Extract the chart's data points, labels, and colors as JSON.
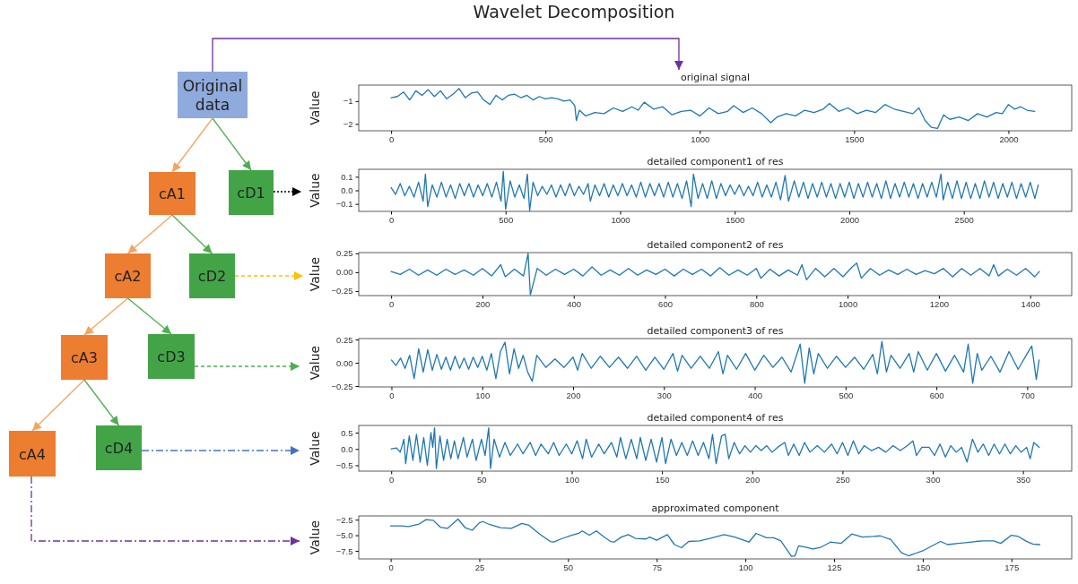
{
  "chart_data": [
    {
      "type": "other",
      "title": "Wavelet Decomposition",
      "annotations": [
        "Original data",
        "cA1",
        "cD1",
        "cA2",
        "cD2",
        "cA3",
        "cD3",
        "cA4",
        "cD4"
      ]
    },
    {
      "type": "line",
      "title": "original signal",
      "ylabel": "Value",
      "xlim": [
        -105,
        2205
      ],
      "xticks": [
        0,
        500,
        1000,
        1500,
        2000
      ],
      "ylim": [
        -2.3,
        -0.3
      ],
      "yticks": [
        {
          "value": -2,
          "label": "−2"
        },
        {
          "value": -1,
          "label": "−1"
        }
      ],
      "series": [
        {
          "color": "#1f77b4",
          "x": [
            0,
            20,
            40,
            60,
            80,
            100,
            120,
            140,
            160,
            180,
            200,
            220,
            240,
            260,
            280,
            300,
            320,
            340,
            360,
            380,
            400,
            420,
            440,
            460,
            480,
            500,
            520,
            540,
            560,
            580,
            595,
            600,
            610,
            630,
            660,
            690,
            720,
            750,
            780,
            800,
            820,
            850,
            880,
            910,
            940,
            970,
            1000,
            1030,
            1060,
            1090,
            1110,
            1140,
            1170,
            1200,
            1230,
            1250,
            1280,
            1310,
            1340,
            1370,
            1400,
            1420,
            1450,
            1480,
            1510,
            1540,
            1570,
            1600,
            1630,
            1660,
            1690,
            1710,
            1730,
            1750,
            1770,
            1790,
            1810,
            1840,
            1870,
            1900,
            1930,
            1960,
            1980,
            2000,
            2020,
            2040,
            2060,
            2085
          ],
          "values": [
            -0.85,
            -0.8,
            -0.6,
            -0.95,
            -0.55,
            -0.75,
            -0.5,
            -0.8,
            -0.55,
            -0.9,
            -0.7,
            -0.45,
            -0.85,
            -0.65,
            -0.6,
            -0.95,
            -1.15,
            -0.75,
            -0.95,
            -0.75,
            -0.7,
            -0.85,
            -0.75,
            -0.95,
            -0.8,
            -0.9,
            -0.85,
            -0.9,
            -1.0,
            -0.95,
            -1.2,
            -1.85,
            -1.4,
            -1.65,
            -1.5,
            -1.55,
            -1.3,
            -1.45,
            -1.25,
            -1.4,
            -1.05,
            -1.35,
            -1.25,
            -1.6,
            -1.45,
            -1.4,
            -1.65,
            -1.3,
            -1.55,
            -1.45,
            -1.2,
            -1.5,
            -1.3,
            -1.55,
            -1.95,
            -1.7,
            -1.55,
            -1.65,
            -1.4,
            -1.5,
            -1.35,
            -1.1,
            -1.45,
            -1.3,
            -1.55,
            -1.4,
            -1.5,
            -1.15,
            -1.35,
            -1.45,
            -1.55,
            -1.3,
            -1.85,
            -2.15,
            -2.2,
            -1.6,
            -1.8,
            -1.7,
            -1.85,
            -1.55,
            -1.7,
            -1.5,
            -1.55,
            -1.15,
            -1.35,
            -1.25,
            -1.4,
            -1.45
          ]
        }
      ]
    },
    {
      "type": "line",
      "title": "detailed component1 of res",
      "ylabel": "Value",
      "xlim": [
        -141,
        2971
      ],
      "xticks": [
        0,
        500,
        1000,
        1500,
        2000,
        2500
      ],
      "ylim": [
        -0.155,
        0.155
      ],
      "yticks": [
        {
          "value": -0.1,
          "label": "−0.1"
        },
        {
          "value": 0,
          "label": "0.0"
        },
        {
          "value": 0.1,
          "label": "0.1"
        }
      ],
      "series": [
        {
          "color": "#1f77b4",
          "x": [
            0,
            20,
            40,
            60,
            80,
            100,
            120,
            140,
            150,
            160,
            180,
            200,
            220,
            240,
            260,
            280,
            300,
            320,
            340,
            360,
            380,
            400,
            420,
            440,
            460,
            480,
            490,
            500,
            520,
            540,
            560,
            580,
            595,
            605,
            620,
            640,
            660,
            680,
            700,
            720,
            740,
            760,
            780,
            800,
            820,
            840,
            860,
            870,
            890,
            910,
            930,
            950,
            970,
            990,
            1010,
            1030,
            1050,
            1070,
            1090,
            1110,
            1130,
            1150,
            1170,
            1190,
            1210,
            1230,
            1250,
            1270,
            1290,
            1310,
            1320,
            1340,
            1360,
            1380,
            1400,
            1420,
            1440,
            1460,
            1480,
            1500,
            1520,
            1540,
            1560,
            1580,
            1600,
            1620,
            1640,
            1660,
            1680,
            1700,
            1720,
            1735,
            1760,
            1780,
            1800,
            1820,
            1840,
            1860,
            1880,
            1900,
            1920,
            1940,
            1960,
            1980,
            2000,
            2020,
            2040,
            2060,
            2080,
            2100,
            2120,
            2140,
            2160,
            2180,
            2200,
            2220,
            2240,
            2260,
            2280,
            2300,
            2320,
            2340,
            2360,
            2380,
            2400,
            2410,
            2430,
            2450,
            2470,
            2490,
            2510,
            2530,
            2550,
            2570,
            2590,
            2610,
            2630,
            2650,
            2670,
            2690,
            2710,
            2730,
            2750,
            2770,
            2790,
            2810,
            2825
          ],
          "values": [
            0.02,
            -0.03,
            0.05,
            -0.04,
            0.03,
            -0.05,
            0.06,
            -0.08,
            0.12,
            -0.12,
            0.04,
            -0.05,
            0.06,
            -0.05,
            0.04,
            -0.06,
            0.05,
            -0.04,
            0.05,
            -0.05,
            0.04,
            -0.04,
            0.05,
            -0.05,
            0.06,
            -0.08,
            0.14,
            -0.14,
            0.07,
            -0.05,
            0.04,
            -0.06,
            0.12,
            -0.15,
            0.06,
            -0.04,
            0.03,
            -0.03,
            0.04,
            -0.05,
            0.04,
            -0.04,
            0.05,
            -0.04,
            0.03,
            -0.03,
            0.05,
            -0.08,
            0.04,
            -0.04,
            0.05,
            -0.05,
            0.04,
            -0.04,
            0.05,
            -0.04,
            0.04,
            -0.05,
            0.06,
            -0.05,
            0.05,
            -0.04,
            0.05,
            -0.05,
            0.06,
            -0.05,
            0.05,
            -0.06,
            0.07,
            -0.12,
            0.12,
            -0.06,
            0.05,
            -0.06,
            0.07,
            -0.06,
            0.05,
            -0.04,
            0.04,
            -0.03,
            0.04,
            -0.04,
            0.03,
            -0.04,
            0.06,
            -0.05,
            0.04,
            -0.05,
            0.06,
            -0.07,
            0.11,
            -0.08,
            0.07,
            -0.05,
            0.06,
            -0.06,
            0.05,
            -0.05,
            0.06,
            -0.05,
            0.05,
            -0.06,
            0.05,
            -0.05,
            0.06,
            -0.06,
            0.05,
            -0.05,
            0.06,
            -0.05,
            0.05,
            -0.06,
            0.07,
            -0.06,
            0.05,
            -0.05,
            0.06,
            -0.05,
            0.05,
            -0.06,
            0.05,
            -0.05,
            0.06,
            -0.05,
            0.12,
            -0.07,
            0.06,
            -0.06,
            0.07,
            -0.06,
            0.06,
            -0.06,
            0.05,
            -0.06,
            0.07,
            -0.05,
            0.06,
            -0.06,
            0.05,
            -0.05,
            0.06,
            -0.06,
            0.05,
            -0.05,
            0.06,
            -0.06,
            0.04
          ]
        }
      ]
    },
    {
      "type": "line",
      "title": "detailed component2 of res",
      "ylabel": "Value",
      "xlim": [
        -71,
        1491
      ],
      "xticks": [
        0,
        200,
        400,
        600,
        800,
        1000,
        1200,
        1400
      ],
      "ylim": [
        -0.31,
        0.26
      ],
      "yticks": [
        {
          "value": -0.25,
          "label": "−0.25"
        },
        {
          "value": 0,
          "label": "0.00"
        },
        {
          "value": 0.25,
          "label": "0.25"
        }
      ],
      "series": [
        {
          "color": "#1f77b4",
          "x": [
            0,
            20,
            40,
            60,
            80,
            100,
            120,
            140,
            160,
            180,
            200,
            220,
            240,
            250,
            270,
            290,
            300,
            305,
            320,
            340,
            360,
            380,
            400,
            420,
            440,
            460,
            480,
            500,
            520,
            540,
            560,
            580,
            600,
            620,
            640,
            660,
            680,
            700,
            720,
            740,
            760,
            780,
            800,
            810,
            830,
            850,
            870,
            890,
            900,
            910,
            930,
            950,
            970,
            990,
            1010,
            1020,
            1030,
            1050,
            1070,
            1090,
            1110,
            1130,
            1150,
            1170,
            1190,
            1210,
            1230,
            1250,
            1270,
            1290,
            1310,
            1320,
            1330,
            1350,
            1370,
            1390,
            1410,
            1420
          ],
          "values": [
            0.01,
            -0.03,
            0.04,
            -0.04,
            0.03,
            -0.04,
            0.04,
            -0.03,
            0.03,
            -0.04,
            0.05,
            -0.05,
            0.1,
            -0.06,
            0.04,
            -0.05,
            0.25,
            -0.3,
            0.05,
            -0.04,
            0.04,
            -0.03,
            0.04,
            -0.05,
            0.07,
            -0.04,
            0.03,
            -0.04,
            0.05,
            -0.04,
            0.03,
            -0.03,
            0.04,
            -0.05,
            0.04,
            -0.03,
            0.04,
            -0.05,
            0.06,
            -0.04,
            0.03,
            -0.04,
            0.05,
            -0.08,
            0.04,
            -0.05,
            0.03,
            -0.04,
            0.1,
            -0.1,
            0.05,
            -0.06,
            0.05,
            -0.06,
            0.07,
            0.12,
            -0.08,
            0.05,
            -0.04,
            0.03,
            -0.03,
            0.04,
            -0.03,
            0.02,
            -0.02,
            0.05,
            -0.06,
            0.05,
            -0.04,
            0.05,
            -0.05,
            0.1,
            -0.05,
            0.04,
            -0.04,
            0.05,
            -0.06,
            0.01
          ]
        }
      ]
    },
    {
      "type": "line",
      "title": "detailed component3 of res",
      "ylabel": "Value",
      "xlim": [
        -36,
        749
      ],
      "xticks": [
        0,
        100,
        200,
        300,
        400,
        500,
        600,
        700
      ],
      "ylim": [
        -0.26,
        0.26
      ],
      "yticks": [
        {
          "value": -0.25,
          "label": "−0.25"
        },
        {
          "value": 0,
          "label": "0.00"
        },
        {
          "value": 0.25,
          "label": "0.25"
        }
      ],
      "series": [
        {
          "color": "#1f77b4",
          "x": [
            0,
            5,
            10,
            15,
            20,
            25,
            30,
            35,
            40,
            45,
            50,
            55,
            60,
            65,
            70,
            75,
            80,
            85,
            90,
            95,
            100,
            105,
            110,
            115,
            120,
            125,
            130,
            135,
            140,
            145,
            150,
            155,
            160,
            170,
            180,
            190,
            200,
            205,
            210,
            220,
            230,
            240,
            250,
            260,
            270,
            280,
            290,
            300,
            310,
            315,
            320,
            330,
            340,
            350,
            360,
            365,
            370,
            380,
            390,
            400,
            410,
            420,
            430,
            440,
            450,
            455,
            460,
            465,
            470,
            480,
            490,
            500,
            510,
            520,
            530,
            535,
            540,
            545,
            550,
            560,
            570,
            575,
            580,
            590,
            600,
            610,
            620,
            630,
            635,
            640,
            645,
            650,
            660,
            670,
            680,
            690,
            700,
            705,
            710,
            713
          ],
          "values": [
            0.03,
            -0.03,
            0.05,
            -0.06,
            0.08,
            -0.17,
            0.15,
            -0.1,
            0.14,
            -0.08,
            0.09,
            -0.07,
            0.06,
            -0.08,
            0.07,
            -0.06,
            0.05,
            -0.07,
            0.06,
            -0.05,
            0.07,
            -0.08,
            0.1,
            -0.17,
            0.12,
            0.22,
            -0.12,
            0.15,
            -0.06,
            0.08,
            -0.1,
            -0.2,
            0.08,
            -0.05,
            0.04,
            -0.05,
            0.06,
            -0.08,
            0.1,
            -0.06,
            0.07,
            -0.05,
            0.06,
            -0.06,
            0.07,
            -0.08,
            0.06,
            -0.07,
            0.1,
            -0.09,
            0.08,
            -0.06,
            0.07,
            -0.06,
            0.12,
            -0.12,
            0.08,
            -0.07,
            0.1,
            -0.08,
            0.08,
            -0.05,
            0.06,
            -0.1,
            0.2,
            -0.22,
            0.16,
            -0.12,
            0.1,
            -0.06,
            0.07,
            -0.05,
            0.06,
            -0.07,
            0.09,
            -0.12,
            0.23,
            -0.1,
            0.08,
            -0.06,
            0.1,
            -0.1,
            0.12,
            -0.08,
            0.1,
            -0.09,
            0.08,
            -0.1,
            0.2,
            -0.22,
            0.1,
            -0.08,
            0.07,
            -0.1,
            0.12,
            -0.07,
            0.1,
            0.18,
            -0.18,
            0.03
          ]
        }
      ]
    },
    {
      "type": "line",
      "title": "detailed component4 of res",
      "ylabel": "Value",
      "xlim": [
        -18,
        377
      ],
      "xticks": [
        0,
        50,
        100,
        150,
        200,
        250,
        300,
        350
      ],
      "ylim": [
        -0.68,
        0.72
      ],
      "yticks": [
        {
          "value": -0.5,
          "label": "−0.5"
        },
        {
          "value": 0,
          "label": "0.0"
        },
        {
          "value": 0.5,
          "label": "0.5"
        }
      ],
      "series": [
        {
          "color": "#1f77b4",
          "x": [
            0,
            3,
            5,
            7,
            8,
            10,
            12,
            14,
            16,
            18,
            20,
            22,
            23,
            24,
            25,
            27,
            29,
            31,
            33,
            35,
            37,
            40,
            42,
            45,
            47,
            50,
            52,
            54,
            55,
            57,
            60,
            63,
            66,
            70,
            73,
            77,
            80,
            83,
            87,
            90,
            93,
            97,
            100,
            103,
            106,
            108,
            111,
            115,
            118,
            122,
            125,
            127,
            130,
            133,
            136,
            138,
            141,
            144,
            147,
            150,
            152,
            155,
            158,
            161,
            164,
            167,
            170,
            173,
            176,
            178,
            180,
            183,
            185,
            187,
            190,
            193,
            196,
            199,
            202,
            205,
            208,
            211,
            214,
            218,
            220,
            223,
            226,
            229,
            232,
            236,
            240,
            244,
            247,
            250,
            253,
            256,
            259,
            262,
            266,
            270,
            274,
            278,
            282,
            286,
            289,
            291,
            294,
            298,
            301,
            304,
            307,
            310,
            313,
            316,
            319,
            322,
            325,
            328,
            331,
            334,
            337,
            340,
            343,
            346,
            349,
            352,
            354,
            356,
            359
          ],
          "values": [
            0,
            0.03,
            -0.1,
            0.3,
            -0.45,
            0.4,
            -0.35,
            0.45,
            -0.4,
            0.35,
            -0.5,
            0.5,
            0.05,
            0.65,
            -0.6,
            0.4,
            -0.35,
            0.3,
            -0.3,
            0.25,
            -0.3,
            0.35,
            -0.25,
            0.3,
            -0.35,
            0.3,
            -0.2,
            0.65,
            -0.6,
            0.3,
            -0.25,
            0.2,
            -0.2,
            0.15,
            -0.15,
            0.2,
            -0.2,
            0.15,
            -0.15,
            0.2,
            -0.2,
            0.15,
            -0.15,
            0.25,
            -0.3,
            0.3,
            -0.25,
            0.15,
            -0.15,
            0.2,
            -0.25,
            0.35,
            -0.3,
            0.3,
            -0.3,
            0.35,
            -0.35,
            0.3,
            -0.4,
            0.35,
            -0.45,
            0.3,
            -0.2,
            0.2,
            -0.2,
            0.25,
            -0.2,
            0.2,
            -0.3,
            0.45,
            -0.45,
            0.4,
            0.45,
            -0.3,
            0.2,
            -0.15,
            0.1,
            -0.1,
            0.1,
            -0.05,
            0.1,
            -0.1,
            0.05,
            0.2,
            -0.2,
            0.15,
            -0.2,
            0.2,
            -0.1,
            0.1,
            -0.1,
            0.15,
            -0.15,
            0.2,
            -0.2,
            0.25,
            -0.15,
            0.1,
            -0.05,
            0.05,
            -0.1,
            0.1,
            -0.05,
            0.1,
            0.25,
            -0.2,
            0.05,
            0.05,
            -0.2,
            0.15,
            -0.25,
            0.1,
            -0.1,
            0.05,
            -0.4,
            0.3,
            -0.1,
            0.15,
            -0.2,
            0.15,
            -0.15,
            0.15,
            -0.15,
            0.1,
            -0.1,
            0.05,
            -0.3,
            0.2,
            0.05
          ]
        }
      ]
    },
    {
      "type": "line",
      "title": "approximated component",
      "ylabel": "Value",
      "xlim": [
        -9,
        192
      ],
      "xticks": [
        0,
        25,
        50,
        75,
        100,
        125,
        150,
        175
      ],
      "ylim": [
        -8.8,
        -1.9
      ],
      "yticks": [
        {
          "value": -7.5,
          "label": "−7.5"
        },
        {
          "value": -5,
          "label": "−5.0"
        },
        {
          "value": -2.5,
          "label": "−2.5"
        }
      ],
      "series": [
        {
          "color": "#1f77b4",
          "x": [
            0,
            3,
            5,
            8,
            10,
            12,
            14,
            16,
            19,
            21,
            23,
            25,
            26,
            28,
            31,
            34,
            37,
            39,
            42,
            45,
            46,
            48,
            51,
            53,
            54,
            56,
            58,
            60,
            62,
            63,
            65,
            67,
            69,
            72,
            73,
            75,
            78,
            80,
            82,
            84,
            87,
            90,
            94,
            97,
            99,
            101,
            103,
            106,
            108,
            110,
            113,
            114,
            115,
            117,
            119,
            121,
            124,
            127,
            130,
            133,
            136,
            138,
            141,
            144,
            146,
            148,
            150,
            152,
            155,
            157,
            160,
            162,
            165,
            167,
            170,
            172,
            175,
            177,
            179,
            181,
            183
          ],
          "values": [
            -3.5,
            -3.5,
            -3.6,
            -3.2,
            -2.5,
            -2.6,
            -3.7,
            -3.9,
            -2.4,
            -3.8,
            -4.2,
            -3.0,
            -2.8,
            -3.3,
            -3.8,
            -3.9,
            -3.1,
            -3.4,
            -4.8,
            -6.0,
            -6.1,
            -5.6,
            -5.0,
            -4.7,
            -4.3,
            -5.0,
            -4.3,
            -5.2,
            -6.0,
            -6.1,
            -5.3,
            -4.9,
            -5.5,
            -5.6,
            -5.3,
            -5.8,
            -4.9,
            -6.5,
            -7.0,
            -6.0,
            -5.9,
            -5.5,
            -4.9,
            -5.3,
            -5.7,
            -6.1,
            -4.7,
            -5.4,
            -5.4,
            -5.9,
            -8.4,
            -8.3,
            -6.7,
            -6.9,
            -7.2,
            -7.0,
            -6.1,
            -6.3,
            -4.8,
            -5.3,
            -5.2,
            -5.1,
            -5.7,
            -7.8,
            -8.3,
            -7.9,
            -7.5,
            -6.9,
            -6.0,
            -6.5,
            -6.3,
            -6.2,
            -6.0,
            -5.9,
            -5.9,
            -6.3,
            -5.0,
            -5.2,
            -5.9,
            -6.4,
            -6.5
          ]
        }
      ]
    }
  ]
}
